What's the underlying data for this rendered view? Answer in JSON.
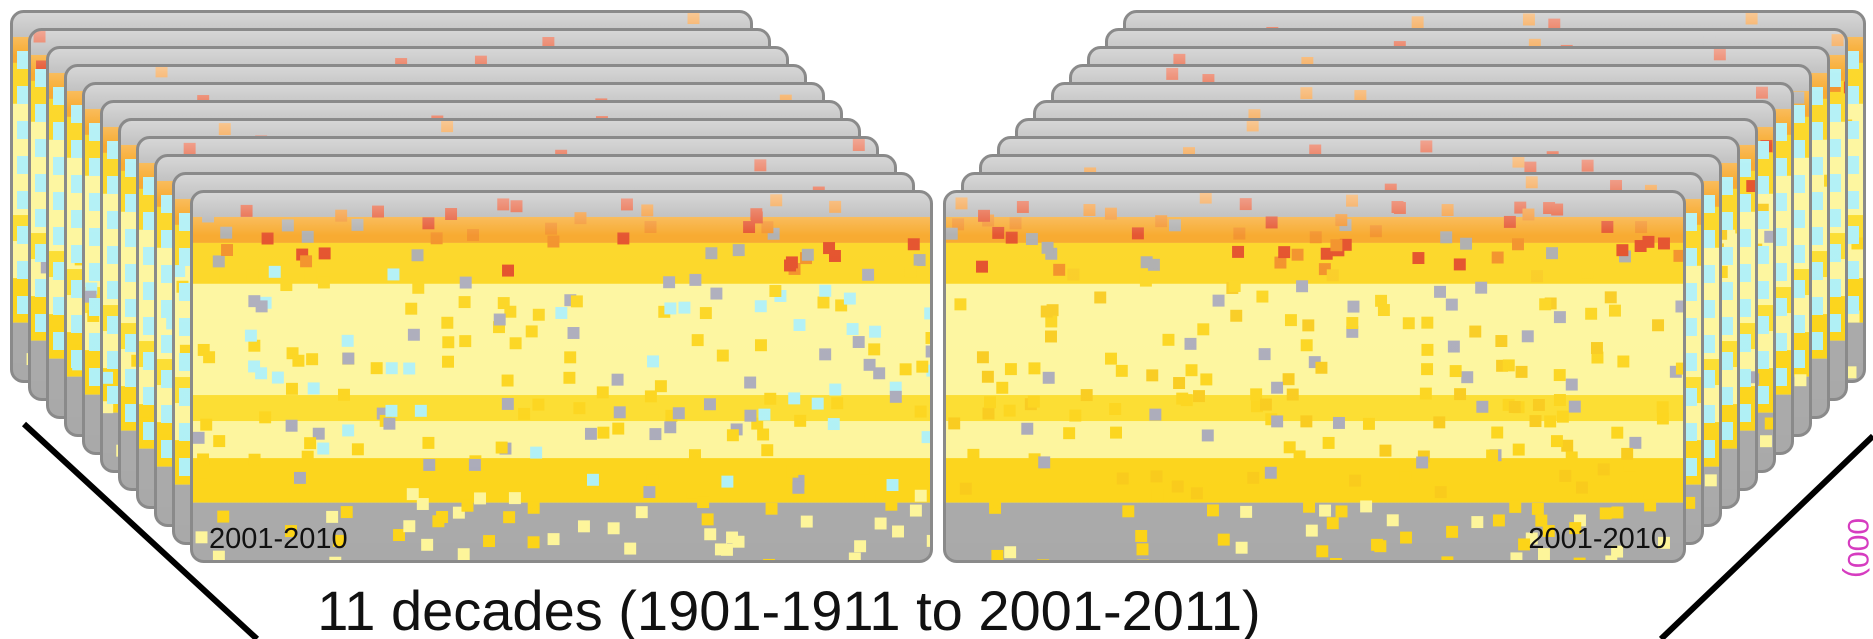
{
  "cards": [
    {
      "label": "2001-2010"
    },
    {
      "label": "2001-2010"
    }
  ],
  "caption": "11 decades (1901-1911 to 2001-2011)",
  "side_note": "000)"
}
